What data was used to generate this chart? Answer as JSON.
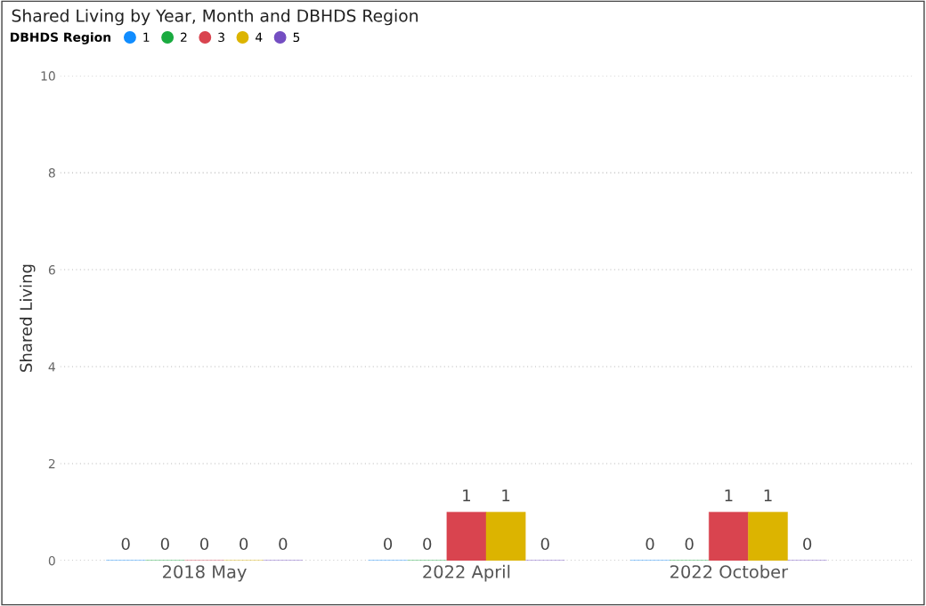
{
  "chart_data": {
    "type": "bar",
    "title": "Shared Living by Year, Month and DBHDS Region",
    "ylabel": "Shared Living",
    "legend_title": "DBHDS Region",
    "categories": [
      "2018 May",
      "2022 April",
      "2022 October"
    ],
    "series": [
      {
        "name": "1",
        "color": "#118dff",
        "values": [
          0,
          0,
          0
        ]
      },
      {
        "name": "2",
        "color": "#1aab40",
        "values": [
          0,
          0,
          0
        ]
      },
      {
        "name": "3",
        "color": "#d9444f",
        "values": [
          0,
          1,
          1
        ]
      },
      {
        "name": "4",
        "color": "#dcb400",
        "values": [
          0,
          1,
          1
        ]
      },
      {
        "name": "5",
        "color": "#744ec2",
        "values": [
          0,
          0,
          0
        ]
      }
    ],
    "ylim": [
      0,
      10
    ],
    "yticks": [
      0,
      2,
      4,
      6,
      8,
      10
    ],
    "grid": "y",
    "legend": "top left",
    "data_labels": true
  }
}
